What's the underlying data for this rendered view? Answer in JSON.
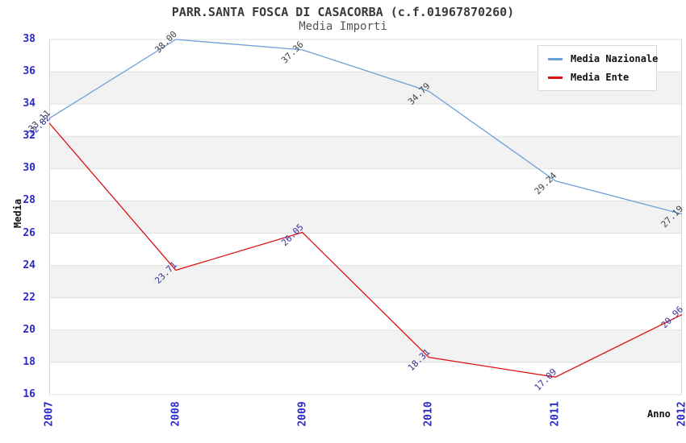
{
  "chart_data": {
    "type": "line",
    "title": "PARR.SANTA FOSCA DI CASACORBA (c.f.01967870260)",
    "subtitle": "Media Importi",
    "xlabel": "Anno",
    "ylabel": "Media",
    "categories": [
      "2007",
      "2008",
      "2009",
      "2010",
      "2011",
      "2012"
    ],
    "series": [
      {
        "name": "Media Nazionale",
        "color": "#6f9fd8",
        "label_color": "#3f3f4a",
        "values": [
          33.11,
          38.0,
          37.36,
          34.79,
          29.24,
          27.19
        ]
      },
      {
        "name": "Media Ente",
        "color": "#dd1111",
        "label_color": "#32329b",
        "values": [
          32.82,
          23.71,
          26.05,
          18.31,
          17.09,
          20.96
        ]
      }
    ],
    "ylim": [
      16,
      38
    ],
    "yticks": [
      38,
      36,
      34,
      32,
      30,
      28,
      26,
      24,
      22,
      20,
      18,
      16
    ],
    "grid": "horizontal-bands",
    "legend_position": "top-right",
    "band_colors": [
      "#ffffff",
      "#f2f2f2"
    ],
    "gridline_color": "#e0e0e0",
    "plot_border_color": "#d8d8d8",
    "tick_label_color": "#2a2acd"
  }
}
